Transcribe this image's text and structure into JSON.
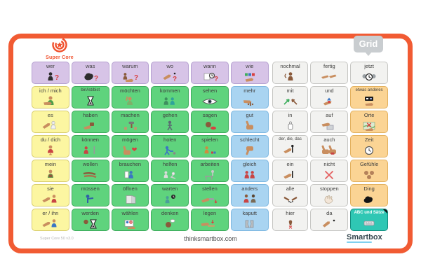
{
  "header": {
    "logo_title": "Super Core",
    "grid_badge": "Grid"
  },
  "footer": {
    "version": "Super Core 50 v3.0",
    "website": "thinksmartbox.com",
    "brand": "Smartbox"
  },
  "colors": {
    "purple": "#d7c4e7",
    "yellow": "#fcf6a1",
    "green": "#5fd37d",
    "blue": "#a9d4f1",
    "white": "#f2f2f0",
    "orange": "#fbd494",
    "teal": "#2fc7b4",
    "frame": "#f15b33",
    "logo_orange": "#f0512d",
    "brand_underline": "#7fd0ef"
  },
  "grid": {
    "rows": [
      [
        {
          "label": "wer",
          "color": "purple",
          "icon": "who-question"
        },
        {
          "label": "was",
          "color": "purple",
          "icon": "what-question"
        },
        {
          "label": "warum",
          "color": "purple",
          "icon": "why-question"
        },
        {
          "label": "wo",
          "color": "purple",
          "icon": "where-question"
        },
        {
          "label": "wann",
          "color": "purple",
          "icon": "when-question"
        },
        {
          "label": "wie",
          "color": "purple",
          "icon": "how-colors"
        },
        {
          "label": "nochmal",
          "color": "white",
          "icon": "person-again"
        },
        {
          "label": "fertig",
          "color": "white",
          "icon": "hands-finished"
        },
        {
          "label": "jetzt",
          "color": "white",
          "icon": "clock-now"
        }
      ],
      [
        {
          "label": "ich / mich",
          "color": "yellow",
          "icon": "point-self"
        },
        {
          "label": "bin/ist/bist",
          "color": "green",
          "icon": "hourglass-be"
        },
        {
          "label": "möchten",
          "color": "green",
          "icon": "raise-hand"
        },
        {
          "label": "kommen",
          "color": "green",
          "icon": "people-come"
        },
        {
          "label": "sehen",
          "color": "green",
          "icon": "eye-see"
        },
        {
          "label": "mehr",
          "color": "blue",
          "icon": "hand-more"
        },
        {
          "label": "mit",
          "color": "white",
          "icon": "arrows-with"
        },
        {
          "label": "und",
          "color": "white",
          "icon": "hand-and"
        },
        {
          "label": "etwas anderes",
          "color": "orange",
          "icon": "symbol-other"
        }
      ],
      [
        {
          "label": "es",
          "color": "yellow",
          "icon": "point-it"
        },
        {
          "label": "haben",
          "color": "green",
          "icon": "hand-have"
        },
        {
          "label": "machen",
          "color": "green",
          "icon": "make-blocks"
        },
        {
          "label": "gehen",
          "color": "green",
          "icon": "person-walk"
        },
        {
          "label": "sagen",
          "color": "green",
          "icon": "head-say"
        },
        {
          "label": "gut",
          "color": "blue",
          "icon": "thumb-up"
        },
        {
          "label": "in",
          "color": "white",
          "icon": "object-in"
        },
        {
          "label": "auf",
          "color": "white",
          "icon": "hand-on-box"
        },
        {
          "label": "Orte",
          "color": "orange",
          "icon": "map-places"
        }
      ],
      [
        {
          "label": "du / dich",
          "color": "yellow",
          "icon": "point-you"
        },
        {
          "label": "können",
          "color": "green",
          "icon": "person-can"
        },
        {
          "label": "mögen",
          "color": "green",
          "icon": "thumb-heart"
        },
        {
          "label": "holen",
          "color": "green",
          "icon": "person-fetch"
        },
        {
          "label": "spielen",
          "color": "green",
          "icon": "person-play"
        },
        {
          "label": "schlecht",
          "color": "blue",
          "icon": "thumb-down"
        },
        {
          "label": "der, die, das",
          "color": "white",
          "icon": "hand-article"
        },
        {
          "label": "auch",
          "color": "white",
          "icon": "two-thumbs"
        },
        {
          "label": "Zeit",
          "color": "orange",
          "icon": "clock-time"
        }
      ],
      [
        {
          "label": "mein",
          "color": "yellow",
          "icon": "person-mine"
        },
        {
          "label": "wollen",
          "color": "green",
          "icon": "hands-want"
        },
        {
          "label": "brauchen",
          "color": "green",
          "icon": "person-need"
        },
        {
          "label": "helfen",
          "color": "green",
          "icon": "people-help"
        },
        {
          "label": "arbeiten",
          "color": "green",
          "icon": "person-work"
        },
        {
          "label": "gleich",
          "color": "blue",
          "icon": "two-same"
        },
        {
          "label": "ein",
          "color": "white",
          "icon": "hand-one"
        },
        {
          "label": "nicht",
          "color": "white",
          "icon": "red-cross"
        },
        {
          "label": "Gefühle",
          "color": "orange",
          "icon": "faces-feelings"
        }
      ],
      [
        {
          "label": "sie",
          "color": "yellow",
          "icon": "point-she"
        },
        {
          "label": "müssen",
          "color": "green",
          "icon": "person-must"
        },
        {
          "label": "öffnen",
          "color": "green",
          "icon": "door-open"
        },
        {
          "label": "warten",
          "color": "green",
          "icon": "person-wait"
        },
        {
          "label": "stellen",
          "color": "green",
          "icon": "hand-place"
        },
        {
          "label": "anders",
          "color": "blue",
          "icon": "two-different"
        },
        {
          "label": "alle",
          "color": "white",
          "icon": "hands-all"
        },
        {
          "label": "stoppen",
          "color": "white",
          "icon": "hand-stop"
        },
        {
          "label": "Ding",
          "color": "orange",
          "icon": "thing-blob"
        }
      ],
      [
        {
          "label": "er / ihn",
          "color": "yellow",
          "icon": "point-he"
        },
        {
          "label": "werden",
          "color": "green",
          "icon": "become-hourglass"
        },
        {
          "label": "wählen",
          "color": "green",
          "icon": "choose-board"
        },
        {
          "label": "denken",
          "color": "green",
          "icon": "think-head"
        },
        {
          "label": "legen",
          "color": "green",
          "icon": "hand-lay"
        },
        {
          "label": "kaputt",
          "color": "blue",
          "icon": "broken-thing"
        },
        {
          "label": "hier",
          "color": "white",
          "icon": "hand-here"
        },
        {
          "label": "da",
          "color": "white",
          "icon": "hand-there"
        },
        {
          "label": "ABC und Sätze",
          "color": "teal",
          "icon": "keyboard-abc"
        }
      ]
    ]
  }
}
